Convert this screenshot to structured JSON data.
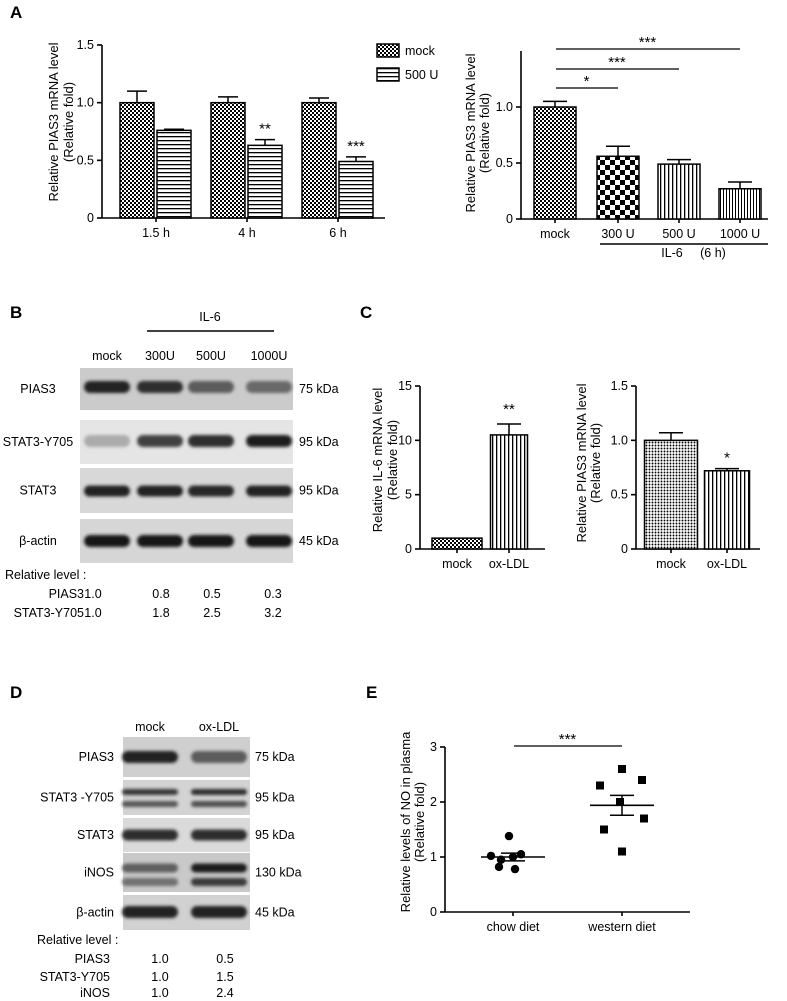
{
  "panel_labels": {
    "A": "A",
    "B": "B",
    "C": "C",
    "D": "D",
    "E": "E"
  },
  "chart_data": [
    {
      "panel": "A",
      "type": "bar",
      "categories": [
        "1.5 h",
        "4 h",
        "6 h"
      ],
      "series": [
        {
          "name": "mock",
          "pattern": "crosshatch",
          "values": [
            1.0,
            1.0,
            1.0
          ],
          "error": [
            0.1,
            0.05,
            0.04
          ],
          "significance": [
            null,
            null,
            null
          ]
        },
        {
          "name": "500 U",
          "pattern": "horizontal-stripes",
          "values": [
            0.76,
            0.63,
            0.49
          ],
          "error": [
            0.01,
            0.05,
            0.04
          ],
          "significance": [
            null,
            "**",
            "***"
          ]
        }
      ],
      "ylabel": "Relative PIAS3 mRNA level",
      "ylabel_2": "(Relative fold)",
      "ylim": [
        0,
        1.5
      ],
      "yticks": [
        0,
        0.5,
        1.0,
        1.5
      ],
      "ytick_labels": [
        "0",
        "0.5",
        "1.0",
        "1.5"
      ],
      "legend": "top-right",
      "grid": false
    },
    {
      "panel": "A",
      "type": "bar",
      "categories": [
        "mock",
        "300 U",
        "500 U",
        "1000 U"
      ],
      "series": [
        {
          "values": [
            1.0,
            0.56,
            0.49,
            0.27
          ],
          "error": [
            0.05,
            0.09,
            0.04,
            0.06
          ],
          "patterns": [
            "crosshatch",
            "checkerboard",
            "vertical-stripes",
            "vertical-stripes-fine"
          ]
        }
      ],
      "group_label": "IL-6",
      "group_note": "(6 h)",
      "group_categories": [
        "300 U",
        "500 U",
        "1000 U"
      ],
      "comparisons": [
        {
          "from": "mock",
          "to": "1000 U",
          "label": "***"
        },
        {
          "from": "mock",
          "to": "500 U",
          "label": "***"
        },
        {
          "from": "mock",
          "to": "300 U",
          "label": "*"
        }
      ],
      "ylabel": "Relative PIAS3 mRNA level",
      "ylabel_2": "(Relative fold)",
      "ylim": [
        0,
        1.5
      ],
      "yticks": [
        0,
        0.5,
        1.0
      ],
      "ytick_labels": [
        "0",
        "0.5",
        "1.0"
      ],
      "grid": false
    },
    {
      "panel": "C",
      "type": "bar",
      "categories": [
        "mock",
        "ox-LDL"
      ],
      "series": [
        {
          "values": [
            1.0,
            10.5
          ],
          "error": [
            0,
            1.0
          ],
          "patterns": [
            "crosshatch",
            "vertical-stripes"
          ],
          "significance": [
            null,
            "**"
          ]
        }
      ],
      "ylabel": "Relative IL-6 mRNA level",
      "ylabel_2": "(Relative fold)",
      "ylim": [
        0,
        15
      ],
      "yticks": [
        0,
        5,
        10,
        15
      ],
      "ytick_labels": [
        "0",
        "5",
        "10",
        "15"
      ],
      "grid": false
    },
    {
      "panel": "C",
      "type": "bar",
      "categories": [
        "mock",
        "ox-LDL"
      ],
      "series": [
        {
          "values": [
            1.0,
            0.72
          ],
          "error": [
            0.07,
            0.02
          ],
          "patterns": [
            "dots",
            "vertical-stripes"
          ],
          "significance": [
            null,
            "*"
          ]
        }
      ],
      "ylabel": "Relative PIAS3 mRNA level",
      "ylabel_2": "(Relative fold)",
      "ylim": [
        0,
        1.5
      ],
      "yticks": [
        0,
        0.5,
        1.0,
        1.5
      ],
      "ytick_labels": [
        "0",
        "0.5",
        "1.0",
        "1.5"
      ],
      "grid": false
    },
    {
      "panel": "E",
      "type": "scatter",
      "categories": [
        "chow diet",
        "western diet"
      ],
      "series": [
        {
          "marker": "circle",
          "values": [
            1.38,
            1.05,
            1.02,
            1.0,
            0.95,
            0.82,
            0.78
          ],
          "mean": 1.0,
          "sem": 0.07
        },
        {
          "marker": "square",
          "values": [
            2.6,
            2.4,
            2.3,
            2.0,
            1.7,
            1.5,
            1.1
          ],
          "mean": 1.94,
          "sem": 0.18
        }
      ],
      "comparisons": [
        {
          "from": "chow diet",
          "to": "western diet",
          "label": "***"
        }
      ],
      "ylabel": "Relative levels of NO in plasma",
      "ylabel_2": "(Relative fold)",
      "ylim": [
        0,
        3
      ],
      "yticks": [
        0,
        1,
        2,
        3
      ],
      "ytick_labels": [
        "0",
        "1",
        "2",
        "3"
      ],
      "grid": false
    }
  ],
  "blot_panels": [
    {
      "panel": "B",
      "treatment_label": "IL-6",
      "lanes": [
        "mock",
        "300U",
        "500U",
        "1000U"
      ],
      "rows": [
        {
          "protein": "PIAS3",
          "kda": "75 kDa",
          "band_intensity": [
            0.9,
            0.85,
            0.62,
            0.55
          ]
        },
        {
          "protein": "STAT3-Y705",
          "kda": "95 kDa",
          "band_intensity": [
            0.22,
            0.75,
            0.85,
            0.92
          ]
        },
        {
          "protein": "STAT3",
          "kda": "95 kDa",
          "band_intensity": [
            0.9,
            0.9,
            0.88,
            0.9
          ]
        },
        {
          "protein": "β-actin",
          "kda": "45 kDa",
          "band_intensity": [
            0.95,
            0.95,
            0.95,
            0.95
          ]
        }
      ],
      "relative_level_title": "Relative level :",
      "relative_levels": [
        {
          "name": "PIAS3",
          "values": [
            "1.0",
            "0.8",
            "0.5",
            "0.3"
          ]
        },
        {
          "name": "STAT3-Y705",
          "values": [
            "1.0",
            "1.8",
            "2.5",
            "3.2"
          ]
        }
      ]
    },
    {
      "panel": "D",
      "lanes": [
        "mock",
        "ox-LDL"
      ],
      "rows": [
        {
          "protein": "PIAS3",
          "kda": "75 kDa",
          "band_intensity": [
            0.9,
            0.62
          ]
        },
        {
          "protein": "STAT3 -Y705",
          "kda": "95 kDa",
          "band_intensity": [
            0.8,
            0.85
          ]
        },
        {
          "protein": "STAT3",
          "kda": "95 kDa",
          "band_intensity": [
            0.85,
            0.85
          ]
        },
        {
          "protein": "iNOS",
          "kda": "130 kDa",
          "band_intensity": [
            0.6,
            0.92
          ]
        },
        {
          "protein": "β-actin",
          "kda": "45 kDa",
          "band_intensity": [
            0.9,
            0.9
          ]
        }
      ],
      "relative_level_title": "Relative level :",
      "relative_levels": [
        {
          "name": "PIAS3",
          "values": [
            "1.0",
            "0.5"
          ]
        },
        {
          "name": "STAT3-Y705",
          "values": [
            "1.0",
            "1.5"
          ]
        },
        {
          "name": "iNOS",
          "values": [
            "1.0",
            "2.4"
          ]
        }
      ]
    }
  ]
}
